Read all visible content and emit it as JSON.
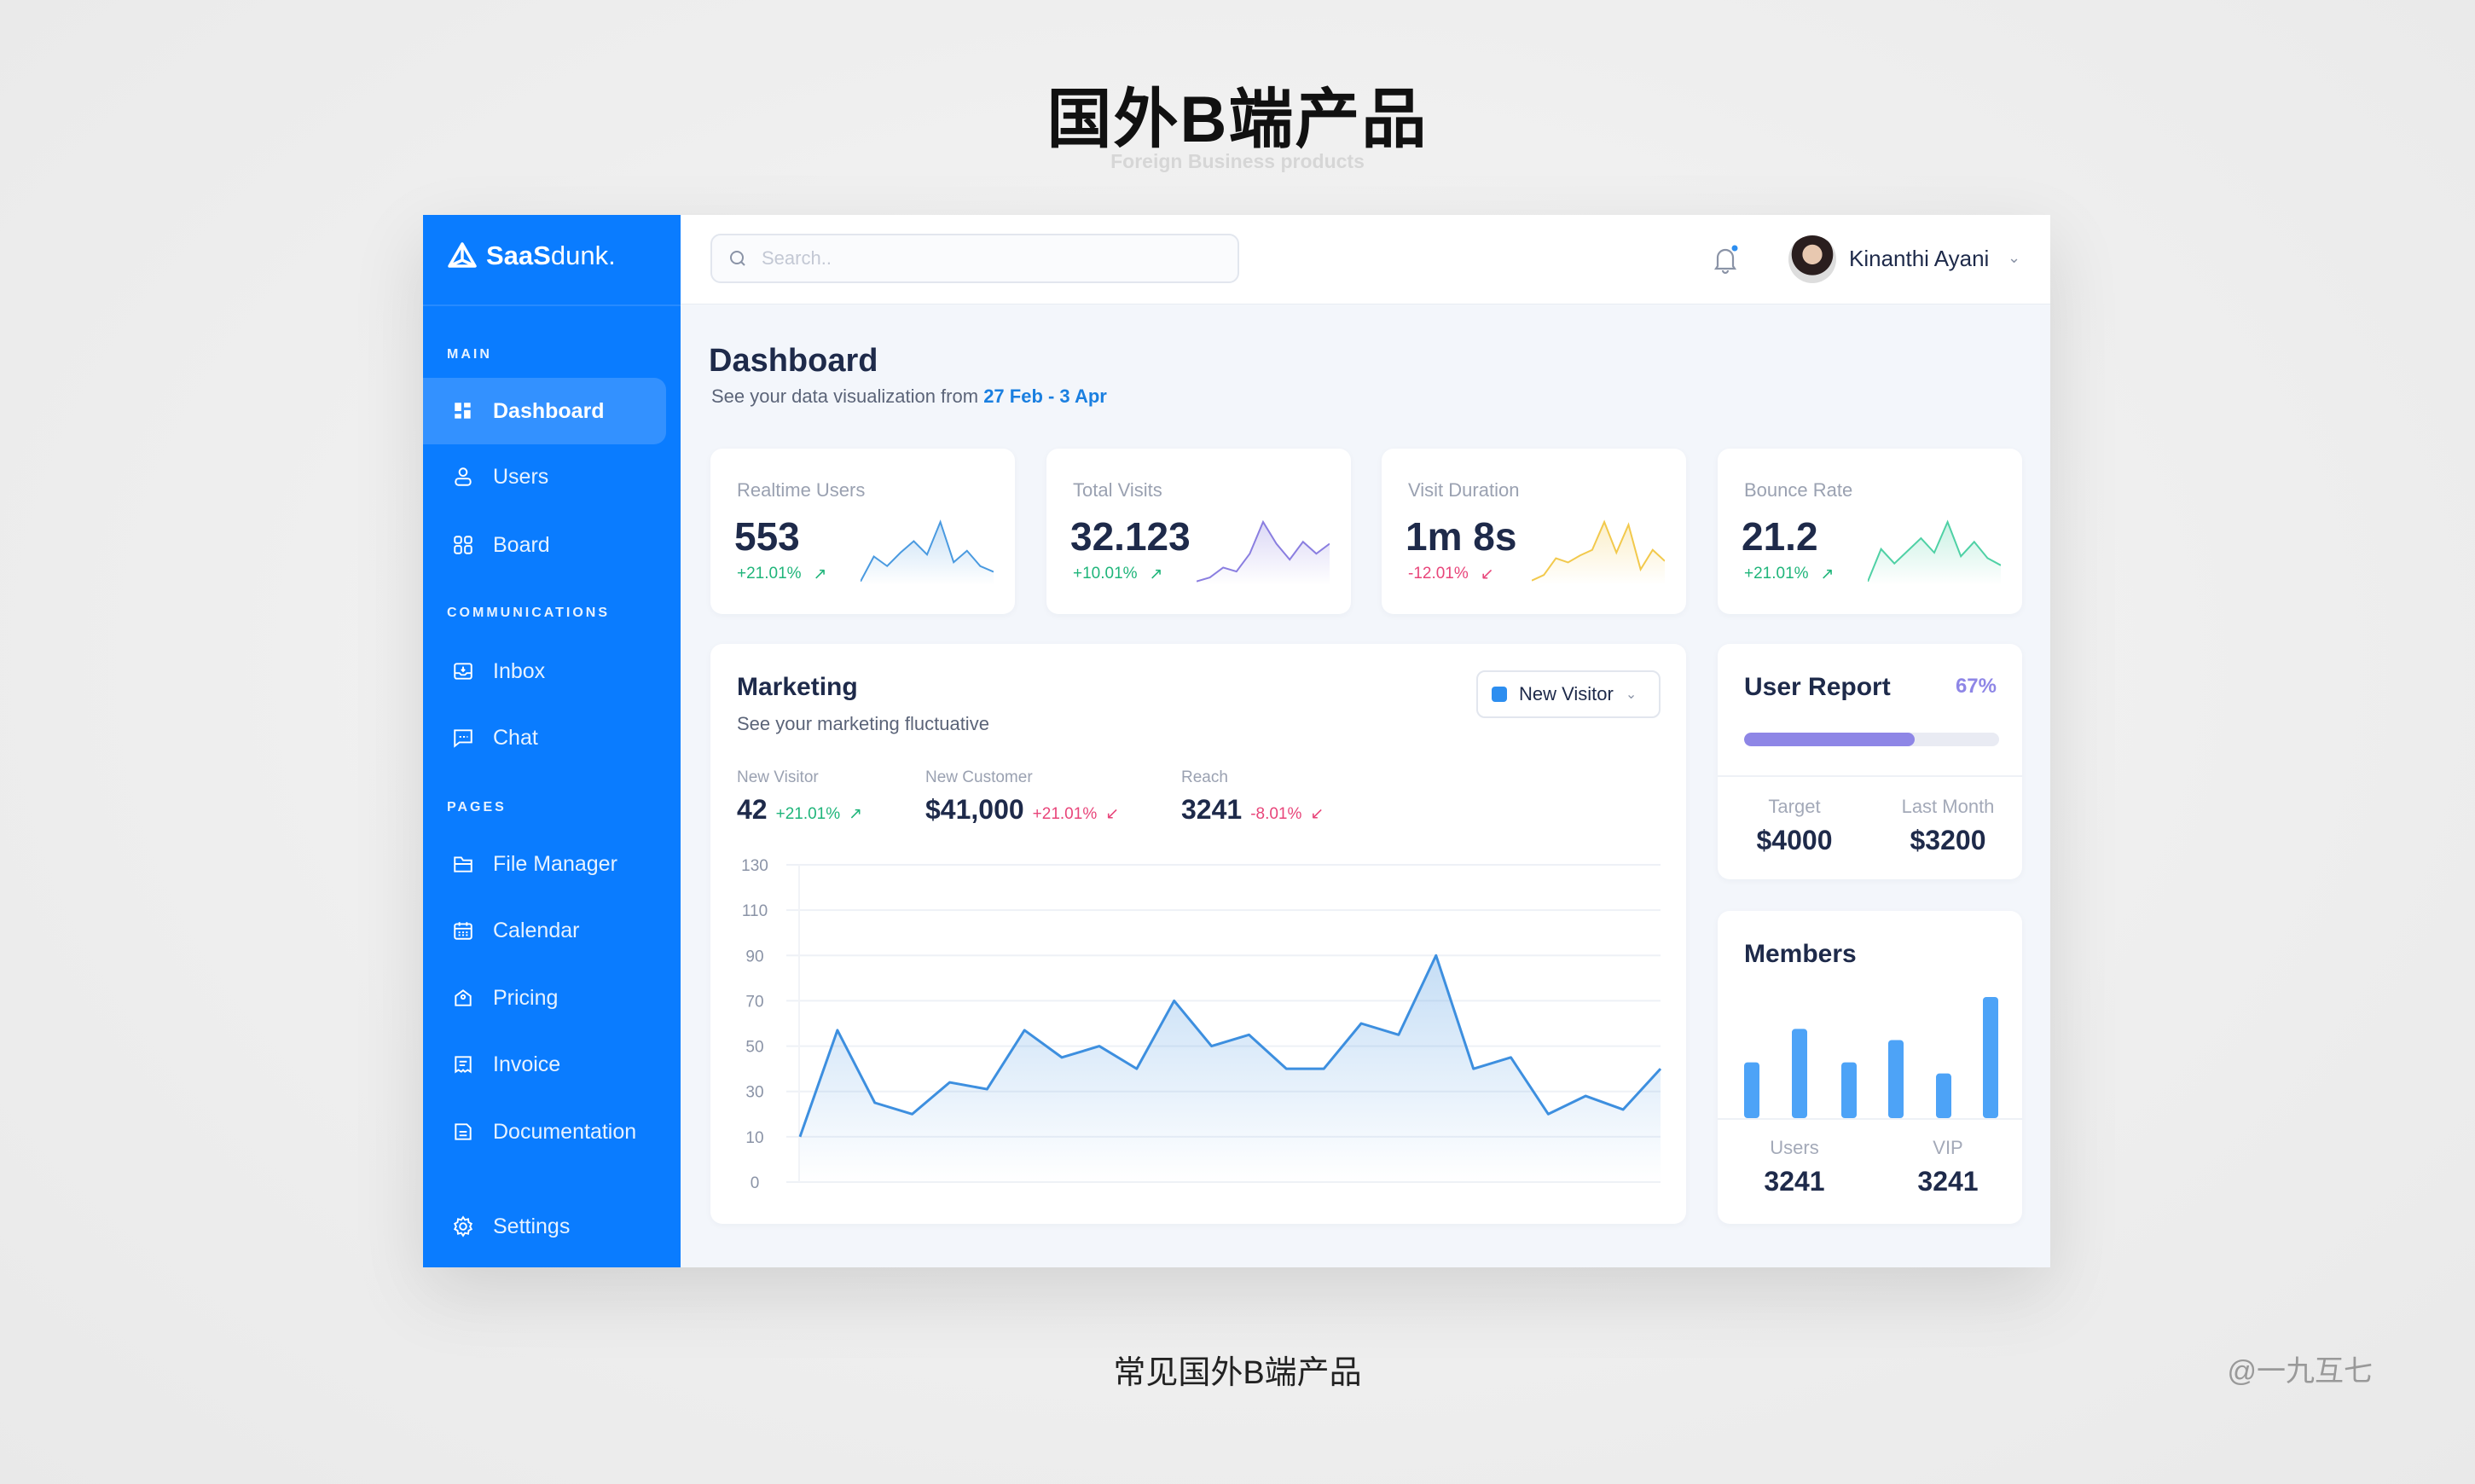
{
  "slide": {
    "title": "国外B端产品",
    "subtitle": "Foreign Business products",
    "caption": "常见国外B端产品",
    "credit": "@一九互七"
  },
  "app": {
    "logo": "SaaS",
    "logo_light": "dunk.",
    "brand_color": "#0a7cff"
  },
  "sidebar": {
    "sections": [
      {
        "label": "MAIN"
      },
      {
        "label": "COMMUNICATIONS"
      },
      {
        "label": "PAGES"
      }
    ],
    "items": [
      {
        "label": "Dashboard",
        "icon": "dashboard-icon",
        "active": true
      },
      {
        "label": "Users",
        "icon": "user-icon"
      },
      {
        "label": "Board",
        "icon": "board-icon"
      },
      {
        "label": "Inbox",
        "icon": "inbox-icon"
      },
      {
        "label": "Chat",
        "icon": "chat-icon"
      },
      {
        "label": "File Manager",
        "icon": "folder-icon"
      },
      {
        "label": "Calendar",
        "icon": "calendar-icon"
      },
      {
        "label": "Pricing",
        "icon": "tag-icon"
      },
      {
        "label": "Invoice",
        "icon": "invoice-icon"
      },
      {
        "label": "Documentation",
        "icon": "document-icon"
      },
      {
        "label": "Settings",
        "icon": "gear-icon"
      }
    ]
  },
  "header": {
    "search_placeholder": "Search..",
    "user_name": "Kinanthi Ayani",
    "has_notification": true
  },
  "page": {
    "title": "Dashboard",
    "subtitle": "See your data visualization from",
    "date_range": "27 Feb - 3 Apr"
  },
  "stats": [
    {
      "label": "Realtime Users",
      "value": "553",
      "change": "+21.01%",
      "direction": "up",
      "color": "#4a9ae0",
      "trend": [
        2,
        28,
        18,
        32,
        44,
        30,
        64,
        22,
        34,
        18,
        12
      ]
    },
    {
      "label": "Total Visits",
      "value": "32.123",
      "change": "+10.01%",
      "direction": "up",
      "color": "#8a7ee0",
      "trend": [
        2,
        6,
        16,
        12,
        30,
        62,
        40,
        24,
        42,
        30,
        40
      ]
    },
    {
      "label": "Visit Duration",
      "value": "1m 8s",
      "change": "-12.01%",
      "direction": "down",
      "color": "#f2c94c",
      "trend": [
        2,
        6,
        18,
        15,
        20,
        24,
        44,
        22,
        42,
        10,
        24,
        16
      ]
    },
    {
      "label": "Bounce Rate",
      "value": "21.2",
      "change": "+21.01%",
      "direction": "up",
      "color": "#4fd1a5",
      "trend": [
        2,
        38,
        22,
        36,
        50,
        34,
        68,
        30,
        46,
        28,
        20
      ]
    }
  ],
  "marketing": {
    "title": "Marketing",
    "subtitle": "See your marketing fluctuative",
    "dropdown": "New Visitor",
    "metrics": [
      {
        "label": "New Visitor",
        "value": "42",
        "change": "+21.01%",
        "direction": "up"
      },
      {
        "label": "New Customer",
        "value": "$41,000",
        "change": "+21.01%",
        "direction": "down"
      },
      {
        "label": "Reach",
        "value": "3241",
        "change": "-8.01%",
        "direction": "down"
      }
    ]
  },
  "chart_data": {
    "type": "area",
    "title": "",
    "xlabel": "",
    "ylabel": "",
    "y_ticks": [
      130,
      110,
      90,
      70,
      50,
      30,
      10,
      0
    ],
    "grid": true,
    "color": "#3d8fdf",
    "values": [
      10,
      57,
      25,
      20,
      34,
      31,
      57,
      45,
      50,
      40,
      70,
      50,
      55,
      40,
      40,
      60,
      55,
      90,
      40,
      45,
      20,
      28,
      22,
      40
    ]
  },
  "user_report": {
    "title": "User Report",
    "percent": "67%",
    "progress": 0.67,
    "target_label": "Target",
    "target_value": "$4000",
    "last_label": "Last Month",
    "last_value": "$3200"
  },
  "members": {
    "title": "Members",
    "bars": [
      35,
      56,
      35,
      49,
      28,
      76
    ],
    "users_label": "Users",
    "users_value": "3241",
    "vip_label": "VIP",
    "vip_value": "3241"
  }
}
